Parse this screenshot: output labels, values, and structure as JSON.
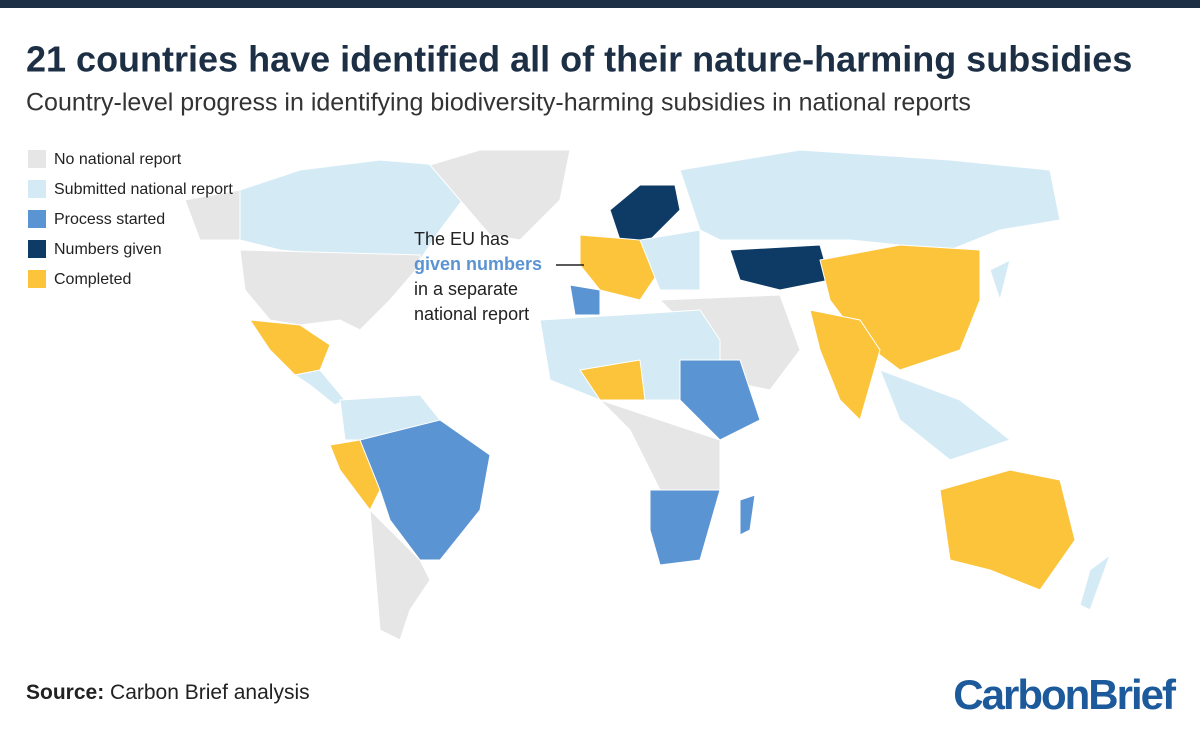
{
  "header": {
    "title": "21 countries have identified all of their nature-harming subsidies",
    "subtitle": "Country-level progress in identifying biodiversity-harming subsidies in national reports"
  },
  "legend": [
    {
      "label": "No national report",
      "color": "#e6e6e6"
    },
    {
      "label": "Submitted national report",
      "color": "#d4ebf5"
    },
    {
      "label": "Process started",
      "color": "#5b94d3"
    },
    {
      "label": "Numbers given",
      "color": "#0d3b66"
    },
    {
      "label": "Completed",
      "color": "#fcc43b"
    }
  ],
  "annotation": {
    "line1": "The EU has",
    "highlight": "given numbers",
    "line3": "in a separate",
    "line4": "national report"
  },
  "footer": {
    "source_label": "Source:",
    "source_text": "Carbon Brief analysis",
    "logo": "CarbonBrief"
  }
}
